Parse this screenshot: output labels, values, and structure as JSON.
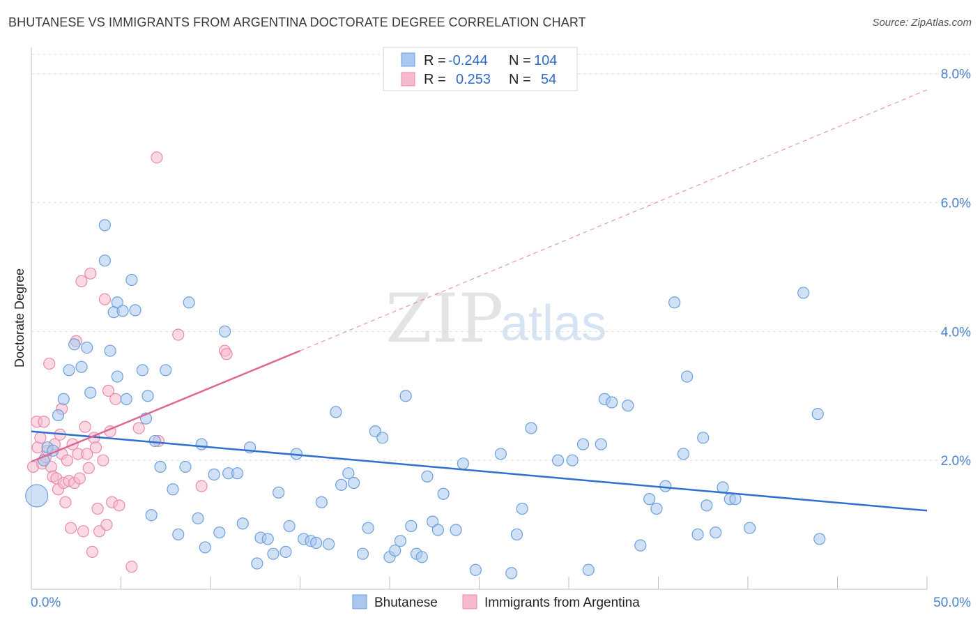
{
  "header": {
    "title": "BHUTANESE VS IMMIGRANTS FROM ARGENTINA DOCTORATE DEGREE CORRELATION CHART",
    "source": "Source: ZipAtlas.com"
  },
  "watermark": {
    "zip": "ZIP",
    "atlas": "atlas"
  },
  "colors": {
    "blue_fill": "#a9c8ef",
    "blue_stroke": "#6b9fdc",
    "blue_line": "#2e6fd0",
    "pink_fill": "#f6b9cd",
    "pink_stroke": "#e98aaa",
    "pink_line": "#e06592",
    "tick_color": "#4a7fcc"
  },
  "legend": {
    "rows": [
      {
        "r_label": "R =",
        "r_value": "-0.244",
        "n_label": "N =",
        "n_value": "104"
      },
      {
        "r_label": "R =",
        "r_value": "0.253",
        "n_label": "N =",
        "n_value": "54"
      }
    ]
  },
  "chart_data": {
    "type": "scatter",
    "xlabel": "",
    "ylabel": "Doctorate Degree",
    "xlim": [
      0,
      50
    ],
    "ylim": [
      0,
      8.3
    ],
    "x_tick_labels": [
      "0.0%",
      "50.0%"
    ],
    "y_ticks": [
      2,
      4,
      6,
      8
    ],
    "y_tick_labels": [
      "2.0%",
      "4.0%",
      "6.0%",
      "8.0%"
    ],
    "grid": true,
    "series": [
      {
        "name": "Bhutanese",
        "color": "#a9c8ef",
        "trend": {
          "x": [
            0,
            50
          ],
          "y": [
            2.45,
            1.22
          ],
          "dashed_to": null
        },
        "points": [
          [
            0.3,
            1.45
          ],
          [
            0.7,
            2.0
          ],
          [
            0.9,
            2.2
          ],
          [
            1.2,
            2.15
          ],
          [
            1.5,
            2.7
          ],
          [
            1.8,
            2.95
          ],
          [
            2.1,
            3.4
          ],
          [
            2.4,
            3.8
          ],
          [
            2.8,
            3.45
          ],
          [
            3.1,
            3.75
          ],
          [
            3.3,
            3.05
          ],
          [
            4.1,
            5.1
          ],
          [
            4.6,
            4.3
          ],
          [
            4.8,
            3.3
          ],
          [
            4.1,
            5.65
          ],
          [
            4.4,
            3.7
          ],
          [
            4.8,
            4.45
          ],
          [
            5.1,
            4.32
          ],
          [
            5.3,
            2.95
          ],
          [
            5.6,
            4.8
          ],
          [
            5.8,
            4.33
          ],
          [
            6.2,
            3.4
          ],
          [
            6.4,
            2.65
          ],
          [
            6.5,
            3.0
          ],
          [
            6.7,
            1.15
          ],
          [
            6.9,
            2.3
          ],
          [
            7.2,
            1.9
          ],
          [
            7.5,
            3.4
          ],
          [
            7.9,
            1.55
          ],
          [
            8.2,
            0.85
          ],
          [
            8.6,
            1.9
          ],
          [
            8.8,
            4.45
          ],
          [
            9.3,
            1.1
          ],
          [
            9.5,
            2.25
          ],
          [
            9.7,
            0.65
          ],
          [
            10.2,
            1.78
          ],
          [
            10.5,
            0.88
          ],
          [
            10.8,
            4.0
          ],
          [
            11.0,
            1.8
          ],
          [
            11.5,
            1.8
          ],
          [
            11.8,
            1.02
          ],
          [
            12.2,
            2.2
          ],
          [
            12.6,
            0.4
          ],
          [
            12.8,
            0.8
          ],
          [
            13.2,
            0.78
          ],
          [
            13.5,
            0.55
          ],
          [
            13.8,
            1.5
          ],
          [
            14.2,
            0.58
          ],
          [
            14.4,
            0.98
          ],
          [
            14.8,
            2.1
          ],
          [
            15.2,
            0.78
          ],
          [
            15.6,
            0.75
          ],
          [
            15.9,
            0.72
          ],
          [
            16.2,
            1.35
          ],
          [
            16.6,
            0.7
          ],
          [
            17.0,
            2.75
          ],
          [
            17.3,
            1.62
          ],
          [
            17.7,
            1.8
          ],
          [
            18.0,
            1.65
          ],
          [
            18.5,
            0.55
          ],
          [
            18.8,
            0.95
          ],
          [
            19.2,
            2.45
          ],
          [
            19.6,
            2.35
          ],
          [
            20.0,
            0.5
          ],
          [
            20.3,
            0.6
          ],
          [
            20.6,
            0.75
          ],
          [
            20.9,
            3.0
          ],
          [
            21.2,
            0.98
          ],
          [
            21.5,
            0.55
          ],
          [
            21.8,
            0.5
          ],
          [
            22.1,
            1.75
          ],
          [
            22.4,
            1.05
          ],
          [
            22.7,
            0.92
          ],
          [
            23.0,
            1.48
          ],
          [
            23.7,
            0.92
          ],
          [
            24.1,
            1.95
          ],
          [
            24.8,
            0.3
          ],
          [
            26.2,
            2.1
          ],
          [
            26.8,
            0.25
          ],
          [
            27.1,
            0.85
          ],
          [
            27.4,
            1.25
          ],
          [
            27.9,
            2.5
          ],
          [
            29.4,
            2.0
          ],
          [
            30.2,
            2.0
          ],
          [
            30.8,
            2.25
          ],
          [
            31.1,
            0.3
          ],
          [
            31.8,
            2.25
          ],
          [
            32.0,
            2.95
          ],
          [
            32.4,
            2.9
          ],
          [
            33.3,
            2.85
          ],
          [
            34.0,
            0.68
          ],
          [
            34.5,
            1.4
          ],
          [
            34.9,
            1.25
          ],
          [
            35.4,
            1.6
          ],
          [
            35.9,
            4.45
          ],
          [
            36.4,
            2.1
          ],
          [
            36.6,
            3.3
          ],
          [
            37.2,
            0.85
          ],
          [
            37.5,
            2.35
          ],
          [
            37.7,
            1.3
          ],
          [
            38.2,
            0.88
          ],
          [
            38.6,
            1.58
          ],
          [
            39.0,
            1.4
          ],
          [
            39.3,
            1.4
          ],
          [
            40.1,
            0.95
          ],
          [
            43.1,
            4.6
          ],
          [
            43.9,
            2.72
          ],
          [
            44.0,
            0.78
          ]
        ]
      },
      {
        "name": "Immigrants from Argentina",
        "color": "#f6b9cd",
        "trend": {
          "x": [
            0,
            15
          ],
          "y": [
            1.98,
            3.7
          ],
          "dashed_to": [
            50,
            7.75
          ]
        },
        "points": [
          [
            0.1,
            1.9
          ],
          [
            0.3,
            2.6
          ],
          [
            0.35,
            2.2
          ],
          [
            0.5,
            2.35
          ],
          [
            0.6,
            1.95
          ],
          [
            0.7,
            2.6
          ],
          [
            0.8,
            2.05
          ],
          [
            0.9,
            2.15
          ],
          [
            1.0,
            3.5
          ],
          [
            1.1,
            1.9
          ],
          [
            1.2,
            1.75
          ],
          [
            1.3,
            2.25
          ],
          [
            1.4,
            1.72
          ],
          [
            1.5,
            1.55
          ],
          [
            1.6,
            2.4
          ],
          [
            1.7,
            2.1
          ],
          [
            1.7,
            2.8
          ],
          [
            1.8,
            1.65
          ],
          [
            1.9,
            1.35
          ],
          [
            2.0,
            2.0
          ],
          [
            2.1,
            1.68
          ],
          [
            2.2,
            0.95
          ],
          [
            2.3,
            2.25
          ],
          [
            2.4,
            1.65
          ],
          [
            2.5,
            3.85
          ],
          [
            2.6,
            2.1
          ],
          [
            2.7,
            1.72
          ],
          [
            2.8,
            4.78
          ],
          [
            2.9,
            0.9
          ],
          [
            3.0,
            2.52
          ],
          [
            3.1,
            2.1
          ],
          [
            3.2,
            1.88
          ],
          [
            3.3,
            4.9
          ],
          [
            3.4,
            0.58
          ],
          [
            3.5,
            2.35
          ],
          [
            3.6,
            2.2
          ],
          [
            3.7,
            1.25
          ],
          [
            3.8,
            0.9
          ],
          [
            4.0,
            2.0
          ],
          [
            4.1,
            4.5
          ],
          [
            4.2,
            1.0
          ],
          [
            4.3,
            3.08
          ],
          [
            4.4,
            2.45
          ],
          [
            4.5,
            1.35
          ],
          [
            4.7,
            2.95
          ],
          [
            4.9,
            1.3
          ],
          [
            5.6,
            0.35
          ],
          [
            6.0,
            2.5
          ],
          [
            7.0,
            6.7
          ],
          [
            7.1,
            2.3
          ],
          [
            8.2,
            3.95
          ],
          [
            9.5,
            1.6
          ],
          [
            10.8,
            3.7
          ],
          [
            10.9,
            3.65
          ]
        ]
      }
    ]
  },
  "bottom_legend": [
    {
      "label": "Bhutanese"
    },
    {
      "label": "Immigrants from Argentina"
    }
  ]
}
